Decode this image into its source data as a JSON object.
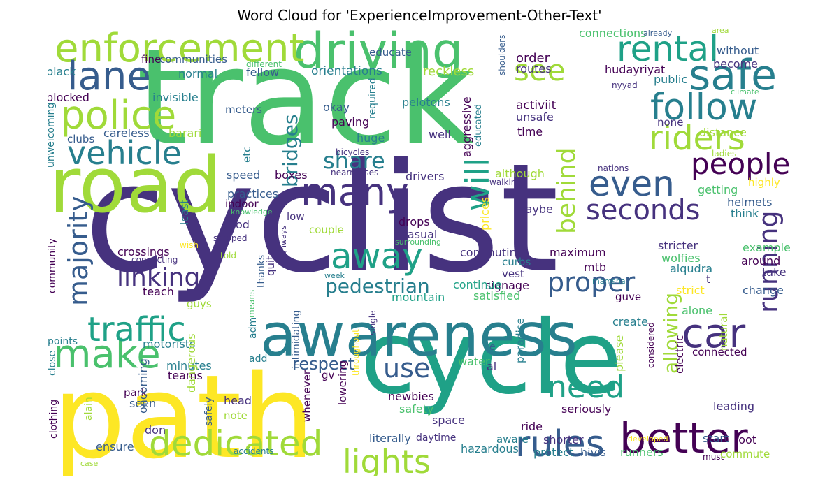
{
  "title": "Word Cloud for 'ExperienceImprovement-Other-Text'",
  "palette": {
    "purple": "#440154",
    "indigo": "#46327e",
    "blue": "#365c8d",
    "teal": "#277f8e",
    "sea": "#1fa187",
    "green": "#4ac16d",
    "lime": "#a0da39",
    "yellow": "#fde725"
  },
  "words": [
    {
      "id": "cyclist",
      "text": "cyclist",
      "color": "#46327e"
    },
    {
      "id": "track",
      "text": "track",
      "color": "#4ac16d"
    },
    {
      "id": "path",
      "text": "path",
      "color": "#fde725"
    },
    {
      "id": "cycle",
      "text": "cycle",
      "color": "#1fa187"
    },
    {
      "id": "road",
      "text": "road",
      "color": "#a0da39"
    },
    {
      "id": "awareness",
      "text": "awareness",
      "color": "#277f8e"
    },
    {
      "id": "driving",
      "text": "driving",
      "color": "#4ac16d"
    },
    {
      "id": "enforcement",
      "text": "enforcement",
      "color": "#a0da39"
    },
    {
      "id": "lane",
      "text": "lane",
      "color": "#365c8d"
    },
    {
      "id": "police",
      "text": "police",
      "color": "#a0da39"
    },
    {
      "id": "vehicle",
      "text": "vehicle",
      "color": "#277f8e"
    },
    {
      "id": "safe",
      "text": "safe",
      "color": "#277f8e"
    },
    {
      "id": "rental",
      "text": "rental",
      "color": "#1fa187"
    },
    {
      "id": "follow",
      "text": "follow",
      "color": "#277f8e"
    },
    {
      "id": "riders",
      "text": "riders",
      "color": "#a0da39"
    },
    {
      "id": "see",
      "text": "see",
      "color": "#a0da39"
    },
    {
      "id": "many",
      "text": "many",
      "color": "#46327e"
    },
    {
      "id": "even",
      "text": "even",
      "color": "#365c8d"
    },
    {
      "id": "people",
      "text": "people",
      "color": "#440154"
    },
    {
      "id": "seconds",
      "text": "seconds",
      "color": "#46327e"
    },
    {
      "id": "better",
      "text": "better",
      "color": "#440154"
    },
    {
      "id": "car",
      "text": "car",
      "color": "#46327e"
    },
    {
      "id": "rules",
      "text": "rules",
      "color": "#365c8d"
    },
    {
      "id": "dedicated",
      "text": "dedicated",
      "color": "#a0da39"
    },
    {
      "id": "make",
      "text": "make",
      "color": "#4ac16d"
    },
    {
      "id": "traffic",
      "text": "traffic",
      "color": "#1fa187"
    },
    {
      "id": "majority",
      "text": "majority",
      "color": "#365c8d"
    },
    {
      "id": "linking",
      "text": "linking",
      "color": "#46327e"
    },
    {
      "id": "away",
      "text": "away",
      "color": "#1fa187"
    },
    {
      "id": "proper",
      "text": "proper",
      "color": "#365c8d"
    },
    {
      "id": "need",
      "text": "need",
      "color": "#1fa187"
    },
    {
      "id": "lights",
      "text": "lights",
      "color": "#a0da39"
    },
    {
      "id": "running",
      "text": "running",
      "color": "#46327e"
    },
    {
      "id": "use",
      "text": "use",
      "color": "#365c8d"
    },
    {
      "id": "will",
      "text": "will",
      "color": "#1fa187"
    },
    {
      "id": "behind",
      "text": "behind",
      "color": "#a0da39"
    },
    {
      "id": "share",
      "text": "share",
      "color": "#277f8e"
    },
    {
      "id": "bridges",
      "text": "bridges",
      "color": "#277f8e"
    },
    {
      "id": "pedestrian",
      "text": "pedestrian",
      "color": "#277f8e"
    },
    {
      "id": "respect",
      "text": "respect",
      "color": "#365c8d"
    },
    {
      "id": "allowing",
      "text": "allowing",
      "color": "#a0da39"
    },
    {
      "id": "educate",
      "text": "educate",
      "color": "#365c8d"
    },
    {
      "id": "connections",
      "text": "connections",
      "color": "#4ac16d"
    },
    {
      "id": "already",
      "text": "already",
      "color": "#365c8d"
    },
    {
      "id": "area",
      "text": "area",
      "color": "#a0da39"
    },
    {
      "id": "without",
      "text": "without",
      "color": "#365c8d"
    },
    {
      "id": "become",
      "text": "become",
      "color": "#46327e"
    },
    {
      "id": "order",
      "text": "order",
      "color": "#440154"
    },
    {
      "id": "routes",
      "text": "routes",
      "color": "#46327e"
    },
    {
      "id": "hudayriyat",
      "text": "hudayriyat",
      "color": "#440154"
    },
    {
      "id": "nyyad",
      "text": "nyyad",
      "color": "#46327e"
    },
    {
      "id": "public",
      "text": "public",
      "color": "#277f8e"
    },
    {
      "id": "climate",
      "text": "climate",
      "color": "#4ac16d"
    },
    {
      "id": "shoulders",
      "text": "shoulders",
      "color": "#365c8d"
    },
    {
      "id": "different",
      "text": "different",
      "color": "#4ac16d"
    },
    {
      "id": "fine",
      "text": "fine",
      "color": "#440154"
    },
    {
      "id": "communities",
      "text": "communities",
      "color": "#365c8d"
    },
    {
      "id": "black",
      "text": "black",
      "color": "#277f8e"
    },
    {
      "id": "normal",
      "text": "normal",
      "color": "#277f8e"
    },
    {
      "id": "fellow",
      "text": "fellow",
      "color": "#365c8d"
    },
    {
      "id": "orientations",
      "text": "orientations",
      "color": "#277f8e"
    },
    {
      "id": "reckless",
      "text": "reckless",
      "color": "#a0da39"
    },
    {
      "id": "blocked",
      "text": "blocked",
      "color": "#440154"
    },
    {
      "id": "invisible",
      "text": "invisible",
      "color": "#277f8e"
    },
    {
      "id": "meters",
      "text": "meters",
      "color": "#365c8d"
    },
    {
      "id": "okay",
      "text": "okay",
      "color": "#365c8d"
    },
    {
      "id": "pelotons",
      "text": "pelotons",
      "color": "#277f8e"
    },
    {
      "id": "required",
      "text": "required",
      "color": "#277f8e"
    },
    {
      "id": "activit",
      "text": "activiit",
      "color": "#440154"
    },
    {
      "id": "unsafe",
      "text": "unsafe",
      "color": "#46327e"
    },
    {
      "id": "careless",
      "text": "careless",
      "color": "#365c8d"
    },
    {
      "id": "barari",
      "text": "barari",
      "color": "#a0da39"
    },
    {
      "id": "clubs",
      "text": "clubs",
      "color": "#365c8d"
    },
    {
      "id": "etc",
      "text": "etc",
      "color": "#277f8e"
    },
    {
      "id": "paving",
      "text": "paving",
      "color": "#440154"
    },
    {
      "id": "huge",
      "text": "huge",
      "color": "#277f8e"
    },
    {
      "id": "aggressive",
      "text": "aggressive",
      "color": "#440154"
    },
    {
      "id": "educated",
      "text": "educated",
      "color": "#277f8e"
    },
    {
      "id": "well",
      "text": "well",
      "color": "#46327e"
    },
    {
      "id": "time",
      "text": "time",
      "color": "#440154"
    },
    {
      "id": "none",
      "text": "none",
      "color": "#46327e"
    },
    {
      "id": "distance",
      "text": "distance",
      "color": "#a0da39"
    },
    {
      "id": "ladies",
      "text": "ladies",
      "color": "#a0da39"
    },
    {
      "id": "unwelcoming",
      "text": "unwelcoming",
      "color": "#277f8e"
    },
    {
      "id": "bicycles",
      "text": "bicycles",
      "color": "#46327e"
    },
    {
      "id": "nearmisses",
      "text": "nearmisses",
      "color": "#46327e"
    },
    {
      "id": "speed",
      "text": "speed",
      "color": "#365c8d"
    },
    {
      "id": "boxes",
      "text": "boxes",
      "color": "#440154"
    },
    {
      "id": "drivers",
      "text": "drivers",
      "color": "#46327e"
    },
    {
      "id": "although",
      "text": "although",
      "color": "#a0da39"
    },
    {
      "id": "nations",
      "text": "nations",
      "color": "#46327e"
    },
    {
      "id": "getting",
      "text": "getting",
      "color": "#4ac16d"
    },
    {
      "id": "highly",
      "text": "highly",
      "color": "#fde725"
    },
    {
      "id": "walking",
      "text": "walking",
      "color": "#46327e"
    },
    {
      "id": "practices",
      "text": "practices",
      "color": "#365c8d"
    },
    {
      "id": "indoor",
      "text": "indoor",
      "color": "#440154"
    },
    {
      "id": "knowledge",
      "text": "knowledge",
      "color": "#4ac16d"
    },
    {
      "id": "least",
      "text": "least",
      "color": "#277f8e"
    },
    {
      "id": "low",
      "text": "low",
      "color": "#46327e"
    },
    {
      "id": "couple",
      "text": "couple",
      "color": "#a0da39"
    },
    {
      "id": "prices",
      "text": "prices",
      "color": "#fde725"
    },
    {
      "id": "maybe",
      "text": "maybe",
      "color": "#46327e"
    },
    {
      "id": "helmets",
      "text": "helmets",
      "color": "#365c8d"
    },
    {
      "id": "think",
      "text": "think",
      "color": "#277f8e"
    },
    {
      "id": "good",
      "text": "good",
      "color": "#46327e"
    },
    {
      "id": "drops",
      "text": "drops",
      "color": "#440154"
    },
    {
      "id": "casual",
      "text": "casual",
      "color": "#46327e"
    },
    {
      "id": "wish",
      "text": "wish",
      "color": "#fde725"
    },
    {
      "id": "stopped",
      "text": "stopped",
      "color": "#46327e"
    },
    {
      "id": "surrounding",
      "text": "surrounding",
      "color": "#4ac16d"
    },
    {
      "id": "connecting",
      "text": "connecting",
      "color": "#46327e"
    },
    {
      "id": "crossings",
      "text": "crossings",
      "color": "#440154"
    },
    {
      "id": "told",
      "text": "told",
      "color": "#a0da39"
    },
    {
      "id": "commuting",
      "text": "commuting",
      "color": "#46327e"
    },
    {
      "id": "maximum",
      "text": "maximum",
      "color": "#440154"
    },
    {
      "id": "stricter",
      "text": "stricter",
      "color": "#46327e"
    },
    {
      "id": "example",
      "text": "example",
      "color": "#4ac16d"
    },
    {
      "id": "curbs",
      "text": "curbs",
      "color": "#277f8e"
    },
    {
      "id": "vest",
      "text": "vest",
      "color": "#46327e"
    },
    {
      "id": "mtb",
      "text": "mtb",
      "color": "#440154"
    },
    {
      "id": "wolfies",
      "text": "wolfies",
      "color": "#4ac16d"
    },
    {
      "id": "alqudra",
      "text": "alqudra",
      "color": "#277f8e"
    },
    {
      "id": "around",
      "text": "around",
      "color": "#440154"
    },
    {
      "id": "t",
      "text": "t",
      "color": "#46327e"
    },
    {
      "id": "take",
      "text": "take",
      "color": "#46327e"
    },
    {
      "id": "community",
      "text": "community",
      "color": "#440154"
    },
    {
      "id": "quite",
      "text": "quite",
      "color": "#46327e"
    },
    {
      "id": "thanks",
      "text": "thanks",
      "color": "#365c8d"
    },
    {
      "id": "highways",
      "text": "highways",
      "color": "#46327e"
    },
    {
      "id": "week",
      "text": "week",
      "color": "#277f8e"
    },
    {
      "id": "signage",
      "text": "signage",
      "color": "#440154"
    },
    {
      "id": "mamsha",
      "text": "mamsha",
      "color": "#277f8e"
    },
    {
      "id": "continue",
      "text": "continue",
      "color": "#1fa187"
    },
    {
      "id": "strict",
      "text": "strict",
      "color": "#fde725"
    },
    {
      "id": "change",
      "text": "change",
      "color": "#365c8d"
    },
    {
      "id": "teach",
      "text": "teach",
      "color": "#440154"
    },
    {
      "id": "mountain",
      "text": "mountain",
      "color": "#1fa187"
    },
    {
      "id": "satisfied",
      "text": "satisfied",
      "color": "#4ac16d"
    },
    {
      "id": "guve",
      "text": "guve",
      "color": "#440154"
    },
    {
      "id": "guys",
      "text": "guys",
      "color": "#a0da39"
    },
    {
      "id": "means",
      "text": "means",
      "color": "#4ac16d"
    },
    {
      "id": "alone",
      "text": "alone",
      "color": "#4ac16d"
    },
    {
      "id": "points",
      "text": "points",
      "color": "#277f8e"
    },
    {
      "id": "motorists",
      "text": "motorists",
      "color": "#277f8e"
    },
    {
      "id": "adm",
      "text": "adm",
      "color": "#277f8e"
    },
    {
      "id": "single",
      "text": "single",
      "color": "#46327e"
    },
    {
      "id": "create",
      "text": "create",
      "color": "#277f8e"
    },
    {
      "id": "e",
      "text": "e",
      "color": "#365c8d"
    },
    {
      "id": "connected",
      "text": "connected",
      "color": "#440154"
    },
    {
      "id": "minutes",
      "text": "minutes",
      "color": "#277f8e"
    },
    {
      "id": "add",
      "text": "add",
      "color": "#277f8e"
    },
    {
      "id": "water",
      "text": "water",
      "color": "#4ac16d"
    },
    {
      "id": "natural",
      "text": "natural",
      "color": "#a0da39"
    },
    {
      "id": "teams",
      "text": "teams",
      "color": "#440154"
    },
    {
      "id": "intimidating",
      "text": "intimidating",
      "color": "#365c8d"
    },
    {
      "id": "gv",
      "text": "gv",
      "color": "#440154"
    },
    {
      "id": "paradise",
      "text": "paradise",
      "color": "#277f8e"
    },
    {
      "id": "please",
      "text": "please",
      "color": "#a0da39"
    },
    {
      "id": "considered",
      "text": "considered",
      "color": "#440154"
    },
    {
      "id": "electric",
      "text": "electric",
      "color": "#440154"
    },
    {
      "id": "al",
      "text": "al",
      "color": "#46327e"
    },
    {
      "id": "close",
      "text": "close",
      "color": "#277f8e"
    },
    {
      "id": "park",
      "text": "park",
      "color": "#440154"
    },
    {
      "id": "dangerous",
      "text": "dangerous",
      "color": "#a0da39"
    },
    {
      "id": "throughout",
      "text": "throughout",
      "color": "#fde725"
    },
    {
      "id": "seen",
      "text": "seen",
      "color": "#365c8d"
    },
    {
      "id": "newbies",
      "text": "newbies",
      "color": "#440154"
    },
    {
      "id": "seriously",
      "text": "seriously",
      "color": "#440154"
    },
    {
      "id": "leading",
      "text": "leading",
      "color": "#46327e"
    },
    {
      "id": "clothing",
      "text": "clothing",
      "color": "#440154"
    },
    {
      "id": "alain",
      "text": "alain",
      "color": "#a0da39"
    },
    {
      "id": "oncoming",
      "text": "oncoming",
      "color": "#365c8d"
    },
    {
      "id": "head",
      "text": "head",
      "color": "#46327e"
    },
    {
      "id": "lowering",
      "text": "lowering",
      "color": "#440154"
    },
    {
      "id": "safety",
      "text": "safety",
      "color": "#4ac16d"
    },
    {
      "id": "don",
      "text": "don",
      "color": "#46327e"
    },
    {
      "id": "note",
      "text": "note",
      "color": "#a0da39"
    },
    {
      "id": "whenever",
      "text": "whenever",
      "color": "#440154"
    },
    {
      "id": "space",
      "text": "space",
      "color": "#46327e"
    },
    {
      "id": "ride",
      "text": "ride",
      "color": "#440154"
    },
    {
      "id": "safely",
      "text": "safely",
      "color": "#365c8d"
    },
    {
      "id": "literally",
      "text": "literally",
      "color": "#365c8d"
    },
    {
      "id": "developed",
      "text": "developed",
      "color": "#fde725"
    },
    {
      "id": "start",
      "text": "start",
      "color": "#365c8d"
    },
    {
      "id": "aware",
      "text": "aware",
      "color": "#277f8e"
    },
    {
      "id": "shorter",
      "text": "shorter",
      "color": "#46327e"
    },
    {
      "id": "root",
      "text": "root",
      "color": "#440154"
    },
    {
      "id": "ensure",
      "text": "ensure",
      "color": "#365c8d"
    },
    {
      "id": "daytime",
      "text": "daytime",
      "color": "#46327e"
    },
    {
      "id": "accidents",
      "text": "accidents",
      "color": "#277f8e"
    },
    {
      "id": "hazardous",
      "text": "hazardous",
      "color": "#277f8e"
    },
    {
      "id": "protect",
      "text": "protect",
      "color": "#277f8e"
    },
    {
      "id": "hivis",
      "text": "hivis",
      "color": "#365c8d"
    },
    {
      "id": "runners",
      "text": "runners",
      "color": "#4ac16d"
    },
    {
      "id": "must",
      "text": "must",
      "color": "#440154"
    },
    {
      "id": "commute",
      "text": "commute",
      "color": "#a0da39"
    },
    {
      "id": "case",
      "text": "case",
      "color": "#a0da39"
    }
  ]
}
